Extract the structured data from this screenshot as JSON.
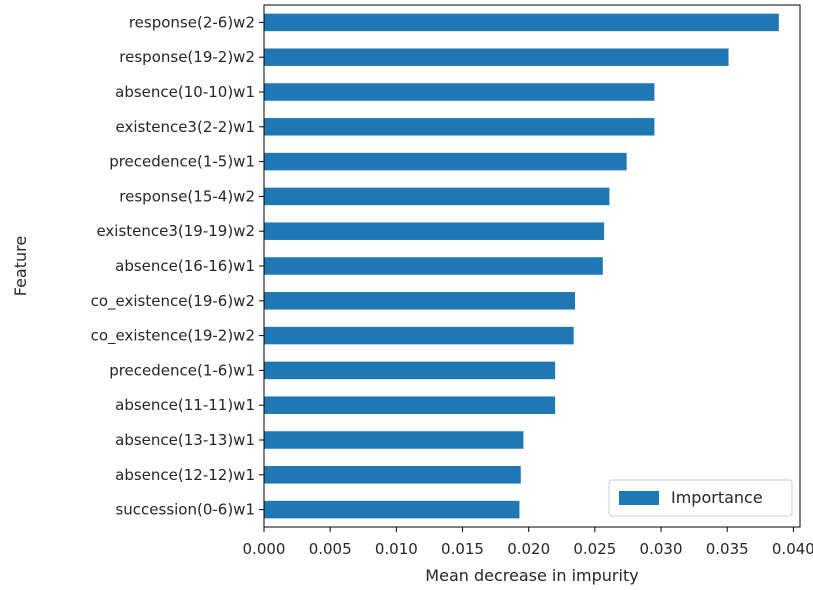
{
  "chart_data": {
    "type": "bar",
    "orientation": "horizontal",
    "xlabel": "Mean decrease in impurity",
    "ylabel": "Feature",
    "xlim": [
      0.0,
      0.0405
    ],
    "xticks": [
      "0.000",
      "0.005",
      "0.010",
      "0.015",
      "0.020",
      "0.025",
      "0.030",
      "0.035",
      "0.040"
    ],
    "grid": false,
    "legend": {
      "position": "bottom-right",
      "entries": [
        "Importance"
      ]
    },
    "color": "#1f77b4",
    "categories": [
      "response(2-6)w2",
      "response(19-2)w2",
      "absence(10-10)w1",
      "existence3(2-2)w1",
      "precedence(1-5)w1",
      "response(15-4)w2",
      "existence3(19-19)w2",
      "absence(16-16)w1",
      "co_existence(19-6)w2",
      "co_existence(19-2)w2",
      "precedence(1-6)w1",
      "absence(11-11)w1",
      "absence(13-13)w1",
      "absence(12-12)w1",
      "succession(0-6)w1"
    ],
    "series": [
      {
        "name": "Importance",
        "values": [
          0.0389,
          0.0351,
          0.0295,
          0.0295,
          0.0274,
          0.0261,
          0.0257,
          0.0256,
          0.0235,
          0.0234,
          0.022,
          0.022,
          0.0196,
          0.0194,
          0.0193
        ]
      }
    ]
  }
}
